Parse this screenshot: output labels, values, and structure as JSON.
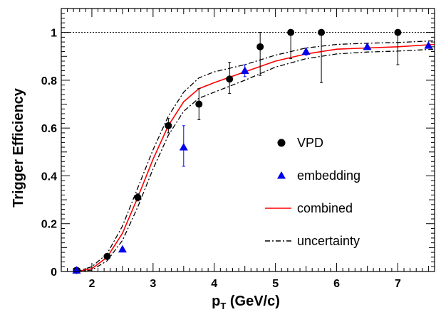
{
  "chart_data": {
    "type": "scatter",
    "xlabel_main": "p",
    "xlabel_sub": "T",
    "xlabel_rest": " (GeV/c)",
    "ylabel": "Trigger Efficiency",
    "xlim": [
      1.5,
      7.6
    ],
    "ylim": [
      0,
      1.1
    ],
    "x_ticks": [
      "2",
      "3",
      "4",
      "5",
      "6",
      "7"
    ],
    "y_ticks": [
      "0",
      "0.2",
      "0.4",
      "0.6",
      "0.8",
      "1"
    ],
    "x_tick_values": [
      2,
      3,
      4,
      5,
      6,
      7
    ],
    "y_tick_values": [
      0,
      0.2,
      0.4,
      0.6,
      0.8,
      1
    ],
    "reference_line": 1.0,
    "legend_position": "center-right",
    "series": [
      {
        "name": "VPD",
        "kind": "points",
        "marker": "circle",
        "color": "#000000",
        "points": [
          {
            "x": 1.75,
            "y": 0.005,
            "err_low": 0.005,
            "err_high": 0.005
          },
          {
            "x": 2.25,
            "y": 0.063,
            "err_low": 0.008,
            "err_high": 0.008
          },
          {
            "x": 2.75,
            "y": 0.31,
            "err_low": 0.015,
            "err_high": 0.015
          },
          {
            "x": 3.25,
            "y": 0.61,
            "err_low": 0.03,
            "err_high": 0.03
          },
          {
            "x": 3.75,
            "y": 0.7,
            "err_low": 0.065,
            "err_high": 0.065
          },
          {
            "x": 4.25,
            "y": 0.805,
            "err_low": 0.06,
            "err_high": 0.07
          },
          {
            "x": 4.75,
            "y": 0.94,
            "err_low": 0.12,
            "err_high": 0.06
          },
          {
            "x": 5.25,
            "y": 1.0,
            "err_low": 0.11,
            "err_high": 0.0
          },
          {
            "x": 5.75,
            "y": 1.0,
            "err_low": 0.21,
            "err_high": 0.0
          },
          {
            "x": 7.0,
            "y": 1.0,
            "err_low": 0.135,
            "err_high": 0.0
          }
        ]
      },
      {
        "name": "embedding",
        "kind": "points",
        "marker": "triangle",
        "color": "#0000ee",
        "points": [
          {
            "x": 1.75,
            "y": 0.005,
            "err_low": 0.002,
            "err_high": 0.002
          },
          {
            "x": 2.5,
            "y": 0.093,
            "err_low": 0.005,
            "err_high": 0.005
          },
          {
            "x": 3.5,
            "y": 0.52,
            "err_low": 0.08,
            "err_high": 0.09
          },
          {
            "x": 4.5,
            "y": 0.84,
            "err_low": 0.025,
            "err_high": 0.025
          },
          {
            "x": 5.5,
            "y": 0.92,
            "err_low": 0.015,
            "err_high": 0.015
          },
          {
            "x": 6.5,
            "y": 0.94,
            "err_low": 0.008,
            "err_high": 0.008
          },
          {
            "x": 7.5,
            "y": 0.945,
            "err_low": 0.008,
            "err_high": 0.008
          }
        ]
      },
      {
        "name": "combined",
        "kind": "line",
        "style": "solid",
        "color": "#ff0000",
        "x": [
          1.75,
          2.0,
          2.25,
          2.5,
          2.75,
          3.0,
          3.25,
          3.5,
          3.75,
          4.0,
          4.5,
          5.0,
          5.5,
          6.0,
          6.5,
          7.0,
          7.6
        ],
        "y": [
          0.0,
          0.012,
          0.06,
          0.16,
          0.31,
          0.47,
          0.61,
          0.71,
          0.765,
          0.79,
          0.835,
          0.88,
          0.91,
          0.93,
          0.935,
          0.94,
          0.95
        ]
      },
      {
        "name": "uncertainty",
        "kind": "line",
        "style": "dashdot",
        "color": "#000000",
        "x": [
          1.75,
          2.0,
          2.25,
          2.5,
          2.75,
          3.0,
          3.25,
          3.5,
          3.75,
          4.0,
          4.5,
          5.0,
          5.5,
          6.0,
          6.5,
          7.0,
          7.6
        ],
        "y": [
          0.0,
          0.02,
          0.075,
          0.19,
          0.35,
          0.51,
          0.65,
          0.75,
          0.81,
          0.835,
          0.865,
          0.905,
          0.935,
          0.95,
          0.955,
          0.958,
          0.965
        ]
      },
      {
        "name": "",
        "kind": "line",
        "style": "dashdot",
        "color": "#000000",
        "x": [
          1.75,
          2.0,
          2.25,
          2.5,
          2.75,
          3.0,
          3.25,
          3.5,
          3.75,
          4.0,
          4.5,
          5.0,
          5.5,
          6.0,
          6.5,
          7.0,
          7.6
        ],
        "y": [
          0.0,
          0.006,
          0.045,
          0.13,
          0.27,
          0.43,
          0.57,
          0.67,
          0.725,
          0.75,
          0.8,
          0.855,
          0.89,
          0.91,
          0.918,
          0.922,
          0.93
        ]
      }
    ],
    "legend": [
      {
        "label": "VPD",
        "marker": "circle",
        "color": "#000000"
      },
      {
        "label": "embedding",
        "marker": "triangle",
        "color": "#0000ee"
      },
      {
        "label": "combined",
        "marker": "line-solid",
        "color": "#ff0000"
      },
      {
        "label": "uncertainty",
        "marker": "line-dashdot",
        "color": "#000000"
      }
    ]
  }
}
